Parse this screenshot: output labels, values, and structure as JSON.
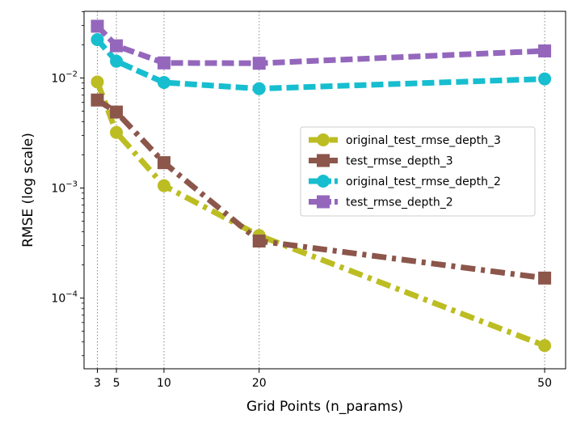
{
  "chart_data": {
    "type": "line",
    "xlabel": "Grid Points (n_params)",
    "ylabel": "RMSE (log scale)",
    "x": [
      3,
      5,
      10,
      20,
      50
    ],
    "xticks": [
      3,
      5,
      10,
      20,
      50
    ],
    "xlim": [
      1.6,
      52.2
    ],
    "yscale": "log",
    "ylim": [
      2.28e-05,
      0.0403
    ],
    "yticks": [
      {
        "value": 0.01,
        "base": "10",
        "exp": "−2"
      },
      {
        "value": 0.001,
        "base": "10",
        "exp": "−3"
      },
      {
        "value": 0.0001,
        "base": "10",
        "exp": "−4"
      }
    ],
    "vertical_gridlines_at_x": true,
    "legend_placement": "center-right",
    "series": [
      {
        "name": "original_test_rmse_depth_3",
        "color": "#bcbd22",
        "dash": "dashdot",
        "marker": "circle",
        "values": [
          0.0092,
          0.0032,
          0.00105,
          0.00037,
          3.7e-05
        ]
      },
      {
        "name": "test_rmse_depth_3",
        "color": "#8c564b",
        "dash": "dashdot",
        "marker": "square",
        "values": [
          0.0063,
          0.0049,
          0.0017,
          0.00033,
          0.000152
        ]
      },
      {
        "name": "original_test_rmse_depth_2",
        "color": "#17becf",
        "dash": "dashed",
        "marker": "circle",
        "values": [
          0.0223,
          0.0142,
          0.0091,
          0.008,
          0.0098
        ]
      },
      {
        "name": "test_rmse_depth_2",
        "color": "#9467bd",
        "dash": "dashed",
        "marker": "square",
        "values": [
          0.0295,
          0.0196,
          0.0137,
          0.0136,
          0.0176
        ]
      }
    ]
  }
}
